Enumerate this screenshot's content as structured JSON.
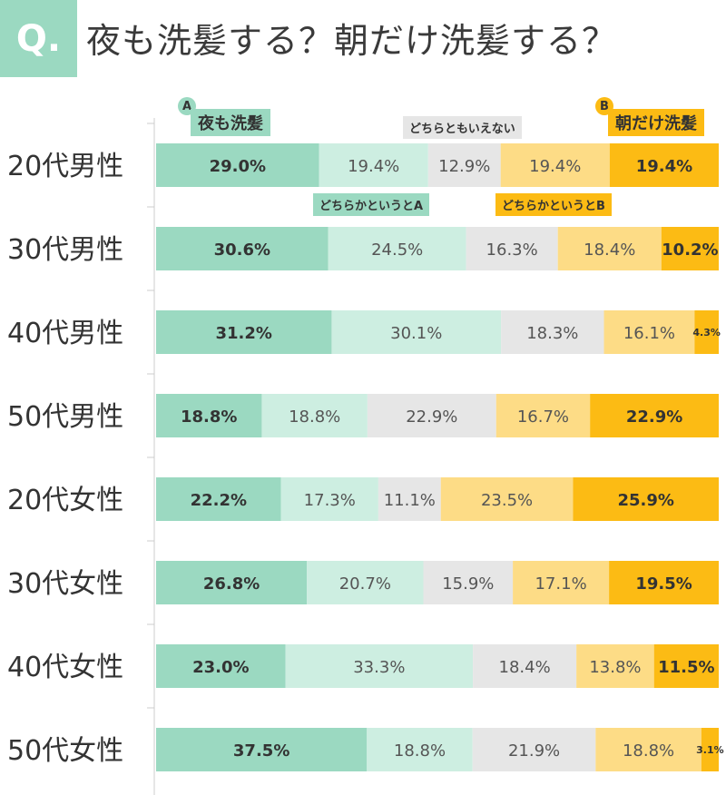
{
  "header": {
    "q_label": "Q.",
    "title": "夜も洗髪する？朝だけ洗髪する？"
  },
  "legend": {
    "a_marker": "A",
    "a_label": "夜も洗髪",
    "lean_a": "どちらかというとA",
    "neutral": "どちらともいえない",
    "lean_b": "どちらかというとB",
    "b_marker": "B",
    "b_label": "朝だけ洗髪"
  },
  "chart_data": {
    "type": "bar",
    "orientation": "horizontal-stacked-100",
    "categories": [
      "20代男性",
      "30代男性",
      "40代男性",
      "50代男性",
      "20代女性",
      "30代女性",
      "40代女性",
      "50代女性"
    ],
    "series": [
      {
        "name": "夜も洗髪",
        "color": "#9bd9c1",
        "values": [
          29.0,
          30.6,
          31.2,
          18.8,
          22.2,
          26.8,
          23.0,
          37.5
        ]
      },
      {
        "name": "どちらかというとA",
        "color": "#cdeee1",
        "values": [
          19.4,
          24.5,
          30.1,
          18.8,
          17.3,
          20.7,
          33.3,
          18.8
        ]
      },
      {
        "name": "どちらともいえない",
        "color": "#e6e6e6",
        "values": [
          12.9,
          16.3,
          18.3,
          22.9,
          11.1,
          15.9,
          18.4,
          21.9
        ]
      },
      {
        "name": "どちらかというとB",
        "color": "#fddc86",
        "values": [
          19.4,
          18.4,
          16.1,
          16.7,
          23.5,
          17.1,
          13.8,
          18.8
        ]
      },
      {
        "name": "朝だけ洗髪",
        "color": "#fcbb14",
        "values": [
          19.4,
          10.2,
          4.3,
          22.9,
          25.9,
          19.5,
          11.5,
          3.1
        ]
      }
    ],
    "unit": "%"
  }
}
